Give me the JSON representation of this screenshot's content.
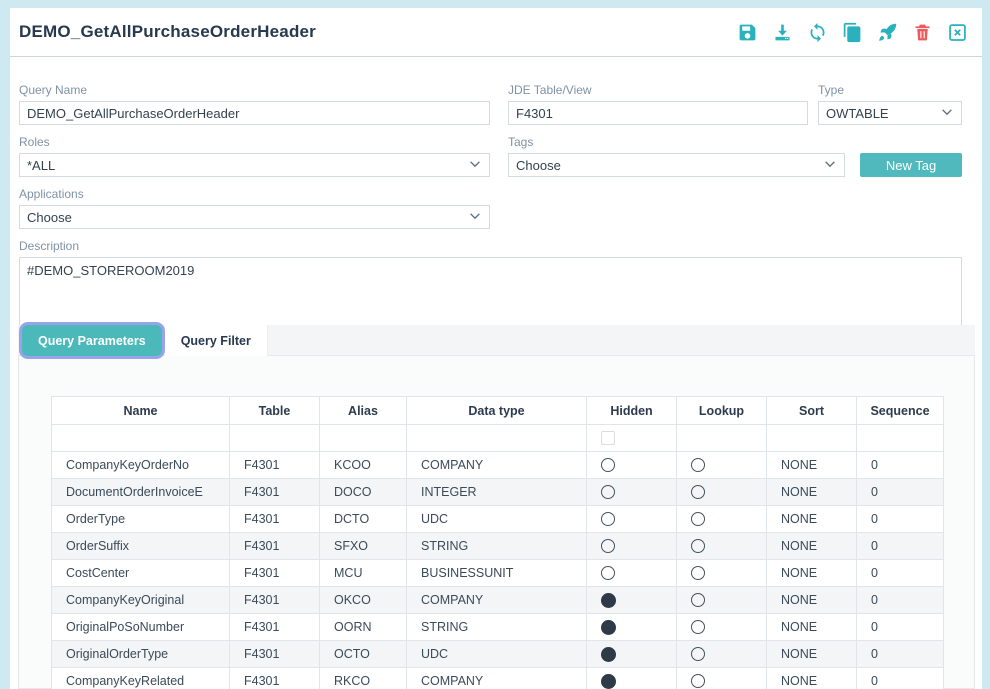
{
  "header": {
    "title": "DEMO_GetAllPurchaseOrderHeader",
    "icons": [
      "save-icon",
      "download-icon",
      "sync-icon",
      "copy-icon",
      "rocket-icon",
      "trash-icon",
      "close-icon"
    ]
  },
  "colors": {
    "accent_teal": "#29b2bd",
    "button_teal": "#4fb9be",
    "active_tab_teal": "#4bb8ba",
    "focus_ring": "#99a3ec",
    "danger_red": "#ec5a5d",
    "page_background": "#cfe9f0"
  },
  "form": {
    "query_name": {
      "label": "Query Name",
      "value": "DEMO_GetAllPurchaseOrderHeader"
    },
    "jde_table": {
      "label": "JDE Table/View",
      "value": "F4301"
    },
    "type": {
      "label": "Type",
      "value": "OWTABLE"
    },
    "roles": {
      "label": "Roles",
      "value": "*ALL"
    },
    "tags": {
      "label": "Tags",
      "value": "Choose"
    },
    "new_tag_button": "New Tag",
    "applications": {
      "label": "Applications",
      "value": "Choose"
    },
    "description": {
      "label": "Description",
      "value": "#DEMO_STOREROOM2019"
    }
  },
  "tabs": [
    {
      "label": "Query Parameters",
      "active": true
    },
    {
      "label": "Query Filter",
      "active": false
    }
  ],
  "table": {
    "columns": [
      "Name",
      "Table",
      "Alias",
      "Data type",
      "Hidden",
      "Lookup",
      "Sort",
      "Sequence"
    ],
    "rows": [
      {
        "name": "CompanyKeyOrderNo",
        "table": "F4301",
        "alias": "KCOO",
        "data_type": "COMPANY",
        "hidden": false,
        "lookup": false,
        "sort": "NONE",
        "sequence": "0"
      },
      {
        "name": "DocumentOrderInvoiceE",
        "table": "F4301",
        "alias": "DOCO",
        "data_type": "INTEGER",
        "hidden": false,
        "lookup": false,
        "sort": "NONE",
        "sequence": "0"
      },
      {
        "name": "OrderType",
        "table": "F4301",
        "alias": "DCTO",
        "data_type": "UDC",
        "hidden": false,
        "lookup": false,
        "sort": "NONE",
        "sequence": "0"
      },
      {
        "name": "OrderSuffix",
        "table": "F4301",
        "alias": "SFXO",
        "data_type": "STRING",
        "hidden": false,
        "lookup": false,
        "sort": "NONE",
        "sequence": "0"
      },
      {
        "name": "CostCenter",
        "table": "F4301",
        "alias": "MCU",
        "data_type": "BUSINESSUNIT",
        "hidden": false,
        "lookup": false,
        "sort": "NONE",
        "sequence": "0"
      },
      {
        "name": "CompanyKeyOriginal",
        "table": "F4301",
        "alias": "OKCO",
        "data_type": "COMPANY",
        "hidden": true,
        "lookup": false,
        "sort": "NONE",
        "sequence": "0"
      },
      {
        "name": "OriginalPoSoNumber",
        "table": "F4301",
        "alias": "OORN",
        "data_type": "STRING",
        "hidden": true,
        "lookup": false,
        "sort": "NONE",
        "sequence": "0"
      },
      {
        "name": "OriginalOrderType",
        "table": "F4301",
        "alias": "OCTO",
        "data_type": "UDC",
        "hidden": true,
        "lookup": false,
        "sort": "NONE",
        "sequence": "0"
      },
      {
        "name": "CompanyKeyRelated",
        "table": "F4301",
        "alias": "RKCO",
        "data_type": "COMPANY",
        "hidden": true,
        "lookup": false,
        "sort": "NONE",
        "sequence": "0"
      }
    ]
  }
}
